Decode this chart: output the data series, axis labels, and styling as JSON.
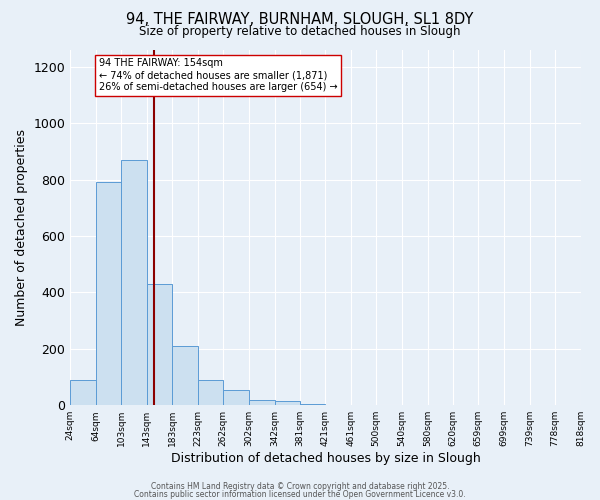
{
  "title": "94, THE FAIRWAY, BURNHAM, SLOUGH, SL1 8DY",
  "subtitle": "Size of property relative to detached houses in Slough",
  "xlabel": "Distribution of detached houses by size in Slough",
  "ylabel": "Number of detached properties",
  "bin_edges": [
    24,
    64,
    103,
    143,
    183,
    223,
    262,
    302,
    342,
    381,
    421,
    461,
    500,
    540,
    580,
    620,
    659,
    699,
    739,
    778,
    818
  ],
  "bar_heights": [
    90,
    790,
    870,
    430,
    210,
    90,
    55,
    20,
    15,
    5,
    0,
    0,
    0,
    0,
    0,
    2,
    0,
    0,
    0,
    2
  ],
  "bar_facecolor": "#cce0f0",
  "bar_edgecolor": "#5b9bd5",
  "vline_x": 154,
  "vline_color": "#8b0000",
  "annotation_line1": "94 THE FAIRWAY: 154sqm",
  "annotation_line2": "← 74% of detached houses are smaller (1,871)",
  "annotation_line3": "26% of semi-detached houses are larger (654) →",
  "ylim": [
    0,
    1260
  ],
  "yticks": [
    0,
    200,
    400,
    600,
    800,
    1000,
    1200
  ],
  "bg_color": "#e8f0f8",
  "footer1": "Contains HM Land Registry data © Crown copyright and database right 2025.",
  "footer2": "Contains public sector information licensed under the Open Government Licence v3.0."
}
